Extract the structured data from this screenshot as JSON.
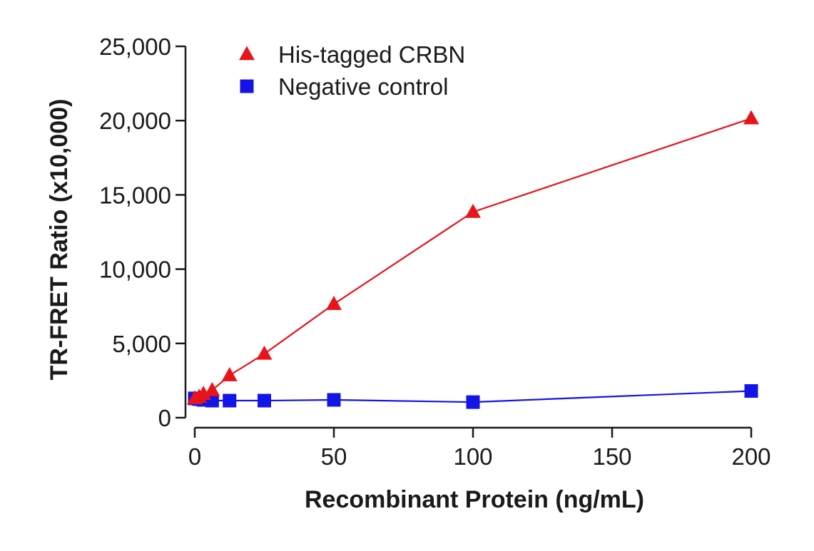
{
  "chart_data": {
    "type": "line",
    "title": "",
    "xlabel": "Recombinant Protein (ng/mL)",
    "ylabel": "TR-FRET Ratio (x10,000)",
    "xlim": [
      0,
      200
    ],
    "ylim": [
      0,
      25000
    ],
    "x_ticks": [
      0,
      50,
      100,
      150,
      200
    ],
    "x_tick_labels": [
      "0",
      "50",
      "100",
      "150",
      "200"
    ],
    "y_ticks": [
      0,
      5000,
      10000,
      15000,
      20000,
      25000
    ],
    "y_tick_labels": [
      "0",
      "5,000",
      "10,000",
      "15,000",
      "20,000",
      "25,000"
    ],
    "grid": false,
    "legend_position": "top-left",
    "series": [
      {
        "name": "His-tagged CRBN",
        "color": "#e8141c",
        "marker": "triangle",
        "x": [
          0,
          1.5625,
          3.125,
          6.25,
          12.5,
          25,
          50,
          100,
          200
        ],
        "y": [
          1300,
          1400,
          1600,
          1850,
          2850,
          4300,
          7650,
          13850,
          20150
        ]
      },
      {
        "name": "Negative control",
        "color": "#1414e6",
        "marker": "square",
        "x": [
          0,
          1.5625,
          3.125,
          6.25,
          12.5,
          25,
          50,
          100,
          200
        ],
        "y": [
          1300,
          1250,
          1200,
          1150,
          1150,
          1150,
          1200,
          1050,
          1800
        ]
      }
    ]
  }
}
